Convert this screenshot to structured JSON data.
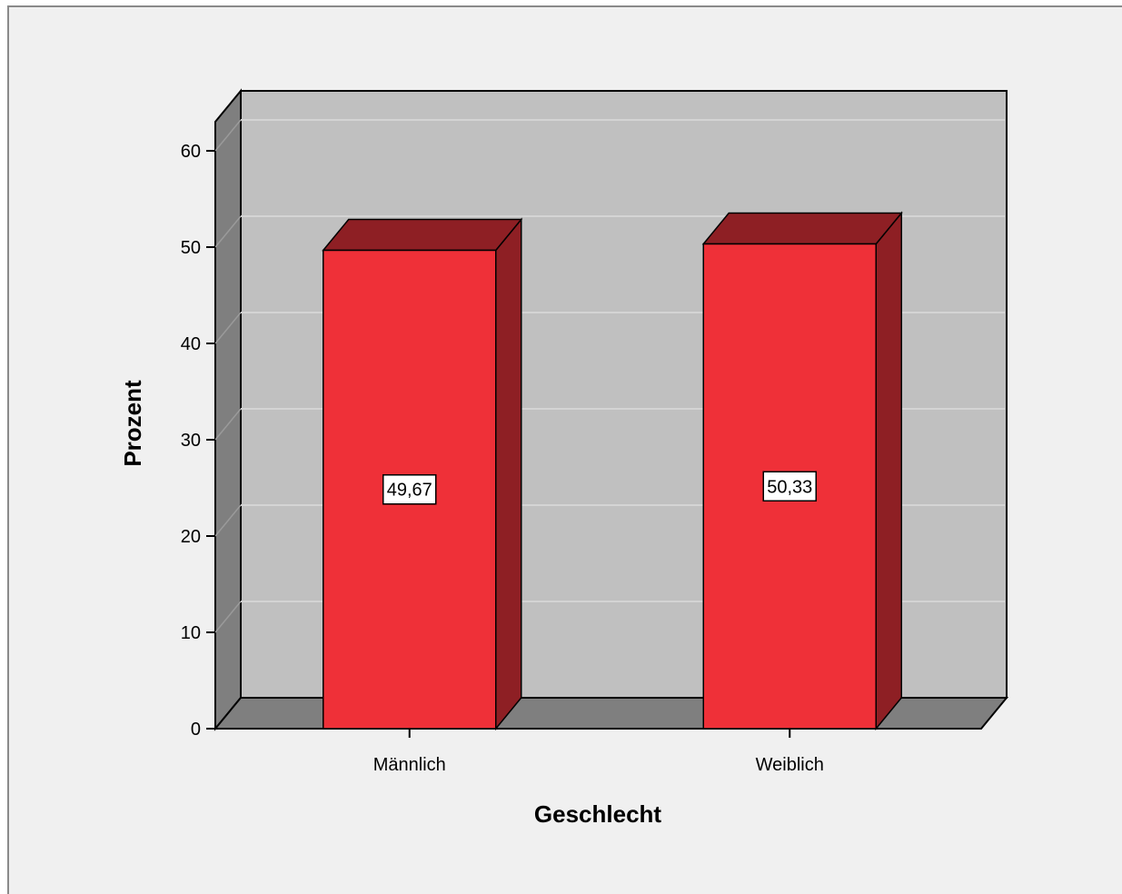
{
  "chart_data": {
    "type": "bar",
    "style": "3d",
    "categories": [
      "Männlich",
      "Weiblich"
    ],
    "values": [
      49.67,
      50.33
    ],
    "data_labels": [
      "49,67",
      "50,33"
    ],
    "title": "",
    "xlabel": "Geschlecht",
    "ylabel": "Prozent",
    "ylim": [
      0,
      60
    ],
    "yticks": [
      0,
      10,
      20,
      30,
      40,
      50,
      60
    ],
    "grid": true,
    "legend": "none",
    "colors": {
      "bar_front": "#ef3038",
      "bar_top": "#8e1f24",
      "bar_side": "#8e1f24",
      "back_wall": "#c0c0c0",
      "side_wall": "#7f7f7f",
      "floor": "#7f7f7f",
      "gridline": "#d4d4d4"
    }
  }
}
